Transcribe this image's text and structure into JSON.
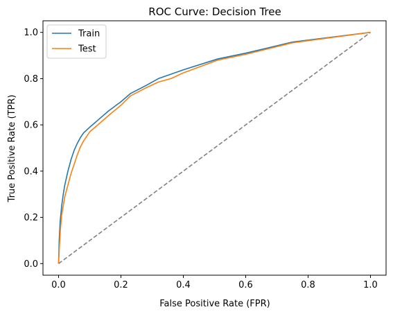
{
  "chart_data": {
    "type": "line",
    "title": "ROC Curve: Decision Tree",
    "xlabel": "False Positive Rate (FPR)",
    "ylabel": "True Positive Rate (TPR)",
    "xlim": [
      -0.05,
      1.05
    ],
    "ylim": [
      -0.05,
      1.05
    ],
    "xticks": [
      0.0,
      0.2,
      0.4,
      0.6,
      0.8,
      1.0
    ],
    "yticks": [
      0.0,
      0.2,
      0.4,
      0.6,
      0.8,
      1.0
    ],
    "xtick_labels": [
      "0.0",
      "0.2",
      "0.4",
      "0.6",
      "0.8",
      "1.0"
    ],
    "ytick_labels": [
      "0.0",
      "0.2",
      "0.4",
      "0.6",
      "0.8",
      "1.0"
    ],
    "grid": false,
    "legend": "top-left",
    "series": [
      {
        "name": "Train",
        "color": "#1f77b4",
        "x": [
          0.0,
          0.002,
          0.005,
          0.01,
          0.015,
          0.02,
          0.03,
          0.04,
          0.05,
          0.06,
          0.07,
          0.08,
          0.1,
          0.13,
          0.16,
          0.2,
          0.23,
          0.28,
          0.32,
          0.4,
          0.51,
          0.6,
          0.75,
          1.0
        ],
        "y": [
          0.0,
          0.1,
          0.18,
          0.25,
          0.3,
          0.34,
          0.4,
          0.45,
          0.49,
          0.52,
          0.545,
          0.565,
          0.59,
          0.625,
          0.66,
          0.7,
          0.735,
          0.77,
          0.8,
          0.838,
          0.885,
          0.91,
          0.958,
          1.0
        ]
      },
      {
        "name": "Test",
        "color": "#ff7f0e",
        "x": [
          0.0,
          0.003,
          0.006,
          0.01,
          0.015,
          0.02,
          0.03,
          0.04,
          0.05,
          0.06,
          0.07,
          0.08,
          0.09,
          0.1,
          0.13,
          0.16,
          0.2,
          0.23,
          0.28,
          0.32,
          0.36,
          0.4,
          0.51,
          0.6,
          0.75,
          1.0
        ],
        "y": [
          0.0,
          0.08,
          0.15,
          0.21,
          0.25,
          0.29,
          0.34,
          0.39,
          0.43,
          0.47,
          0.505,
          0.53,
          0.55,
          0.57,
          0.605,
          0.64,
          0.685,
          0.725,
          0.76,
          0.785,
          0.8,
          0.825,
          0.88,
          0.905,
          0.955,
          1.0
        ]
      },
      {
        "name": "",
        "color": "#808080",
        "dashed": true,
        "x": [
          0.0,
          1.0
        ],
        "y": [
          0.0,
          1.0
        ]
      }
    ]
  }
}
